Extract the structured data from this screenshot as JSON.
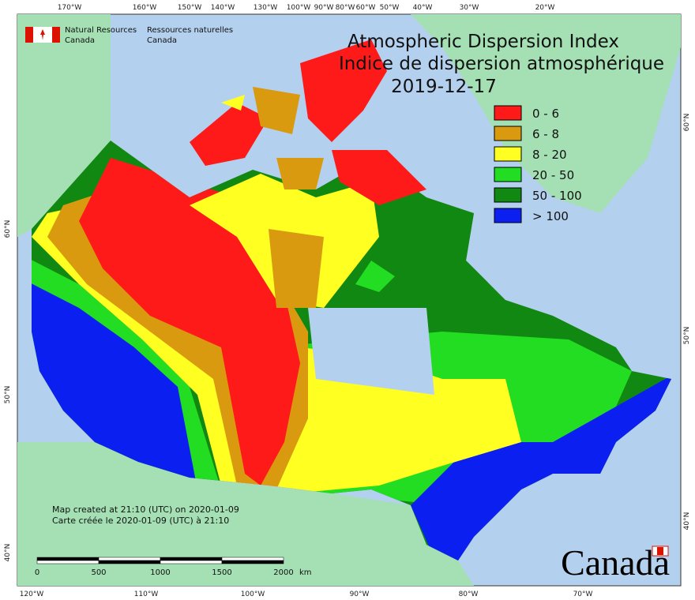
{
  "header": {
    "agency_en": "Natural Resources",
    "agency_en_2": "Canada",
    "agency_fr": "Ressources naturelles",
    "agency_fr_2": "Canada"
  },
  "title": {
    "line1": "Atmospheric Dispersion Index",
    "line2": "Indice de dispersion atmosphérique",
    "date": "2019-12-17"
  },
  "legend": [
    {
      "label": "0 - 6",
      "color": "#ff1a1a"
    },
    {
      "label": "6 - 8",
      "color": "#d99a0f"
    },
    {
      "label": "8 - 20",
      "color": "#ffff22"
    },
    {
      "label": "20 - 50",
      "color": "#22dd22"
    },
    {
      "label": "50 - 100",
      "color": "#118811"
    },
    {
      "label": "> 100",
      "color": "#0a1ff0"
    }
  ],
  "graticule": {
    "top": [
      "170°W",
      "160°W",
      "150°W",
      "140°W",
      "130°W",
      "100°W",
      "90°W",
      "80°W",
      "60°W",
      "50°W",
      "40°W",
      "30°W",
      "20°W"
    ],
    "bottom": [
      "120°W",
      "110°W",
      "100°W",
      "90°W",
      "80°W",
      "70°W"
    ],
    "left": [
      "60°N",
      "50°N",
      "40°N"
    ],
    "right": [
      "60°N",
      "50°N",
      "40°N"
    ]
  },
  "credits": {
    "en": "Map created at 21:10 (UTC) on 2020-01-09",
    "fr": "Carte créée le 2020-01-09 (UTC) à 21:10"
  },
  "scale_bar": {
    "ticks": [
      "0",
      "500",
      "1000",
      "1500",
      "2000"
    ],
    "unit": "km"
  },
  "wordmark": "Canada"
}
